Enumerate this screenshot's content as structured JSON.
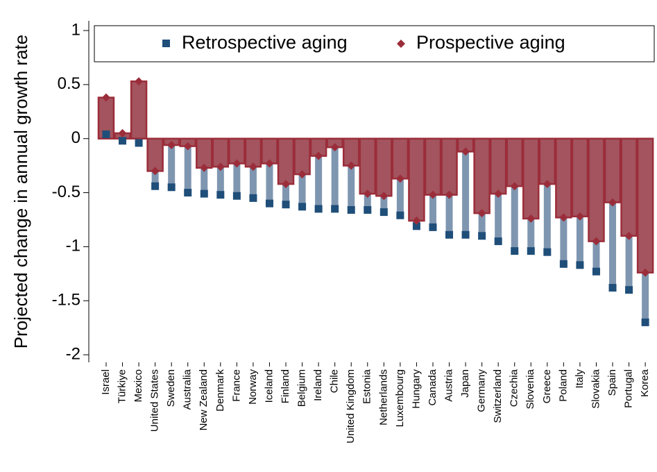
{
  "chart_data": {
    "type": "bar",
    "y_label": "Projected change in annual growth rate",
    "categories": [
      "Israel",
      "Türkiye",
      "Mexico",
      "United States",
      "Sweden",
      "Australia",
      "New Zealand",
      "Denmark",
      "France",
      "Norway",
      "Iceland",
      "Finland",
      "Belgium",
      "Ireland",
      "Chile",
      "United Kingdom",
      "Estonia",
      "Netherlands",
      "Luxembourg",
      "Hungary",
      "Canada",
      "Austria",
      "Japan",
      "Germany",
      "Switzerland",
      "Czechia",
      "Slovenia",
      "Greece",
      "Poland",
      "Italy",
      "Slovakia",
      "Spain",
      "Portugal",
      "Korea"
    ],
    "series": [
      {
        "name": "Retrospective aging",
        "color": "#1f4e79",
        "bar_color": "#7f96b0",
        "values": [
          0.04,
          -0.02,
          -0.04,
          -0.44,
          -0.45,
          -0.5,
          -0.51,
          -0.52,
          -0.53,
          -0.55,
          -0.6,
          -0.61,
          -0.63,
          -0.65,
          -0.65,
          -0.66,
          -0.66,
          -0.68,
          -0.71,
          -0.81,
          -0.82,
          -0.89,
          -0.89,
          -0.9,
          -0.95,
          -1.04,
          -1.04,
          -1.05,
          -1.16,
          -1.17,
          -1.23,
          -1.38,
          -1.4,
          -1.7
        ]
      },
      {
        "name": "Prospective aging",
        "color": "#9b2d3a",
        "bar_color": "#a3545e",
        "values": [
          0.38,
          0.05,
          0.53,
          -0.3,
          -0.06,
          -0.07,
          -0.27,
          -0.26,
          -0.23,
          -0.26,
          -0.23,
          -0.42,
          -0.33,
          -0.16,
          -0.08,
          -0.25,
          -0.51,
          -0.53,
          -0.37,
          -0.76,
          -0.52,
          -0.52,
          -0.12,
          -0.69,
          -0.51,
          -0.44,
          -0.74,
          -0.42,
          -0.73,
          -0.72,
          -0.95,
          -0.59,
          -0.9,
          -1.24
        ]
      }
    ],
    "ylim": [
      -2.07,
      1.09
    ],
    "yticks": [
      1,
      0.5,
      0,
      -0.5,
      -1,
      -1.5,
      -2
    ]
  }
}
